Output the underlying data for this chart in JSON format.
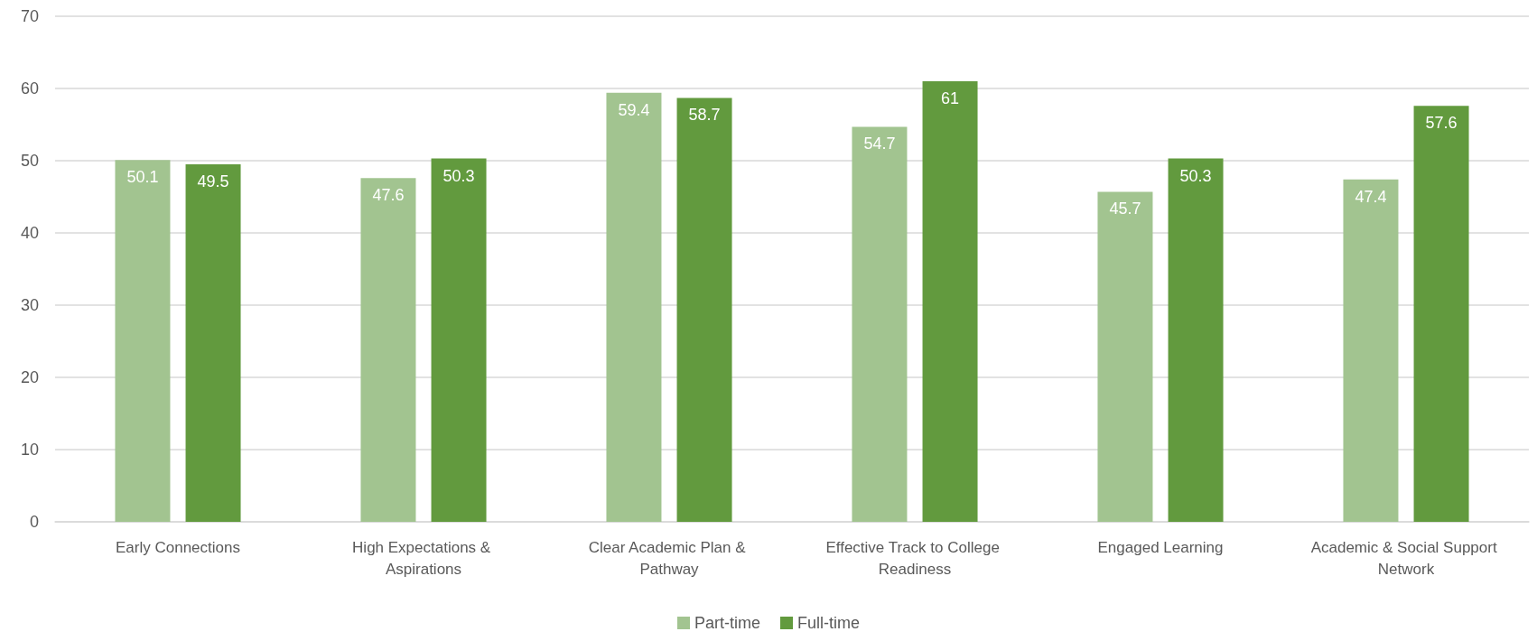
{
  "chart_data": {
    "type": "bar",
    "categories": [
      "Early Connections",
      "High Expectations & Aspirations",
      "Clear Academic Plan & Pathway",
      "Effective Track to College Readiness",
      "Engaged Learning",
      "Academic & Social Support Network"
    ],
    "series": [
      {
        "name": "Part-time",
        "color": "#a2c490",
        "values": [
          50.1,
          47.6,
          59.4,
          54.7,
          45.7,
          47.4
        ]
      },
      {
        "name": "Full-time",
        "color": "#629a3e",
        "values": [
          49.5,
          50.3,
          58.7,
          61,
          50.3,
          57.6
        ]
      }
    ],
    "ylim": [
      0,
      70
    ],
    "yticks": [
      0,
      10,
      20,
      30,
      40,
      50,
      60,
      70
    ],
    "grid": "y",
    "legend": "bottom",
    "data_labels": true
  }
}
